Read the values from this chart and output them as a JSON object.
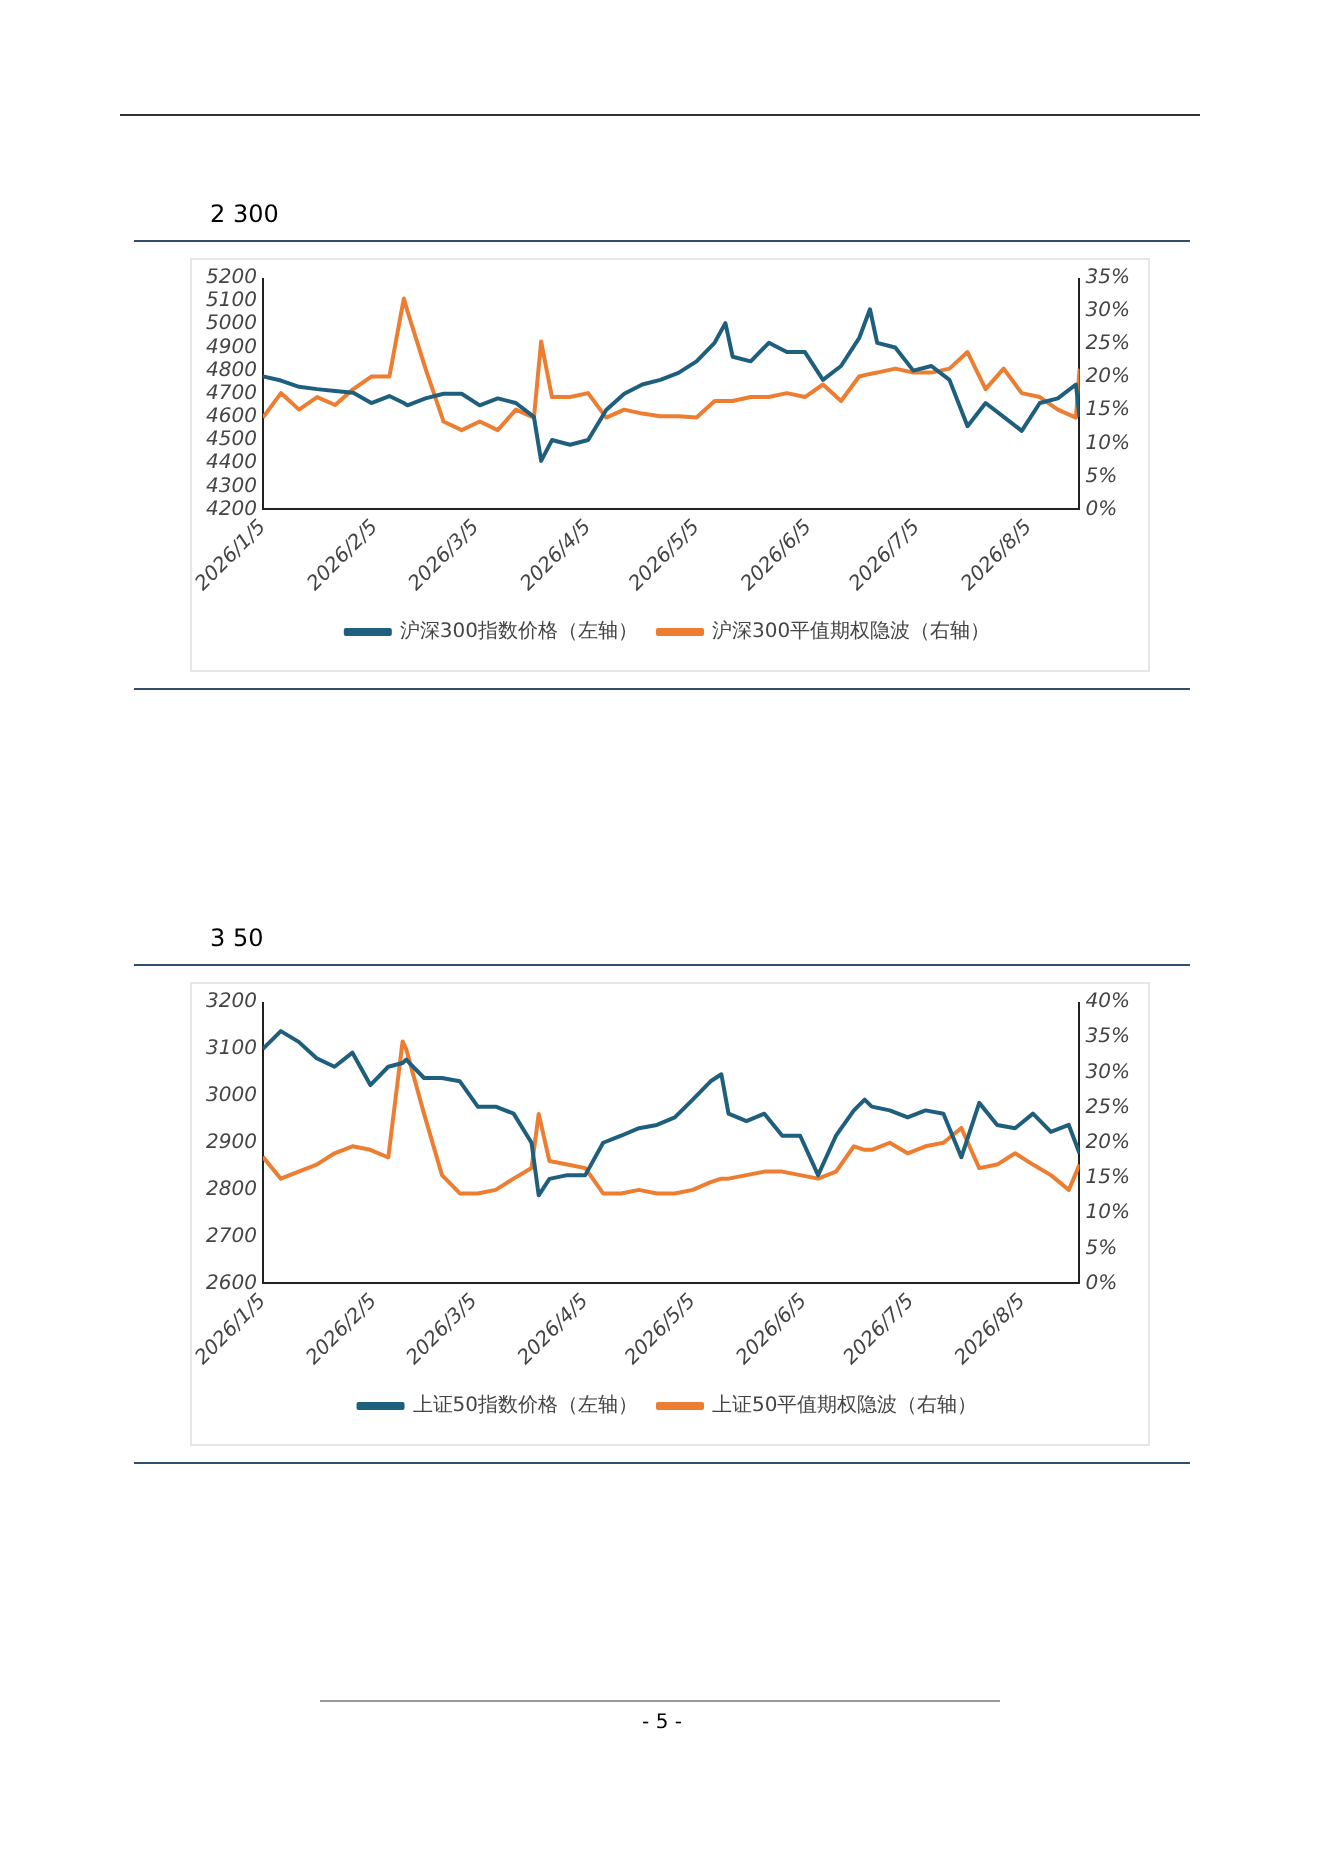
{
  "chart_data": [
    {
      "type": "line",
      "title": "2 300",
      "legend": "bottom",
      "grid": false,
      "marker": "none",
      "line_style": "solid",
      "x": [
        "2026-01-05",
        "2026-01-10",
        "2026-01-15",
        "2026-01-20",
        "2026-01-25",
        "2026-01-30",
        "2026-02-04",
        "2026-02-09",
        "2026-02-13",
        "2026-02-14",
        "2026-02-19",
        "2026-02-24",
        "2026-03-01",
        "2026-03-06",
        "2026-03-11",
        "2026-03-16",
        "2026-03-21",
        "2026-03-23",
        "2026-03-26",
        "2026-03-31",
        "2026-04-05",
        "2026-04-10",
        "2026-04-15",
        "2026-04-20",
        "2026-04-25",
        "2026-04-30",
        "2026-05-05",
        "2026-05-10",
        "2026-05-13",
        "2026-05-15",
        "2026-05-20",
        "2026-05-25",
        "2026-05-30",
        "2026-06-04",
        "2026-06-09",
        "2026-06-14",
        "2026-06-19",
        "2026-06-22",
        "2026-06-24",
        "2026-06-29",
        "2026-07-04",
        "2026-07-09",
        "2026-07-14",
        "2026-07-19",
        "2026-07-24",
        "2026-07-29",
        "2026-08-03",
        "2026-08-08",
        "2026-08-13",
        "2026-08-18",
        "2026-08-19"
      ],
      "xlim": [
        "2026-01-05",
        "2026-08-19"
      ],
      "xticks": [
        {
          "value": "2026-01-05",
          "label": "2026/1/5"
        },
        {
          "value": "2026-02-05",
          "label": "2026/2/5"
        },
        {
          "value": "2026-03-05",
          "label": "2026/3/5"
        },
        {
          "value": "2026-04-05",
          "label": "2026/4/5"
        },
        {
          "value": "2026-05-05",
          "label": "2026/5/5"
        },
        {
          "value": "2026-06-05",
          "label": "2026/6/5"
        },
        {
          "value": "2026-07-05",
          "label": "2026/7/5"
        },
        {
          "value": "2026-08-05",
          "label": "2026/8/5"
        }
      ],
      "ylim": [
        4200,
        5200
      ],
      "yticks": [
        4200,
        4300,
        4400,
        4500,
        4600,
        4700,
        4800,
        4900,
        5000,
        5100,
        5200
      ],
      "y2lim": [
        0,
        35
      ],
      "y2ticks": [
        {
          "value": 0,
          "label": "0%"
        },
        {
          "value": 5,
          "label": "5%"
        },
        {
          "value": 10,
          "label": "10%"
        },
        {
          "value": 15,
          "label": "15%"
        },
        {
          "value": 20,
          "label": "20%"
        },
        {
          "value": 25,
          "label": "25%"
        },
        {
          "value": 30,
          "label": "30%"
        },
        {
          "value": 35,
          "label": "35%"
        }
      ],
      "series": [
        {
          "name": "沪深300指数价格（左轴）",
          "color": "#1f5f7e",
          "values": [
            4775,
            4757,
            4730,
            4720,
            4712,
            4704,
            4660,
            4690,
            4660,
            4650,
            4680,
            4700,
            4700,
            4650,
            4680,
            4660,
            4600,
            4410,
            4500,
            4480,
            4500,
            4630,
            4700,
            4740,
            4760,
            4790,
            4840,
            4920,
            5005,
            4860,
            4840,
            4920,
            4880,
            4880,
            4760,
            4820,
            4940,
            5065,
            4920,
            4900,
            4800,
            4820,
            4760,
            4560,
            4660,
            4600,
            4540,
            4660,
            4680,
            4740,
            4600
          ]
        },
        {
          "name": "沪深300平值期权隐波（右轴）",
          "color": "#ed7d31",
          "axis": "y2",
          "values": [
            13.9,
            17.6,
            15.1,
            17.0,
            15.8,
            18.2,
            20.1,
            20.1,
            31.9,
            30.0,
            21.3,
            13.3,
            12.0,
            13.3,
            12.0,
            15.1,
            13.9,
            25.4,
            17.0,
            17.0,
            17.6,
            13.9,
            15.1,
            14.5,
            14.1,
            14.1,
            13.9,
            16.4,
            16.4,
            16.4,
            17.0,
            17.0,
            17.6,
            17.0,
            18.9,
            16.4,
            20.1,
            20.5,
            20.7,
            21.3,
            20.7,
            20.7,
            21.3,
            23.8,
            18.2,
            21.3,
            17.6,
            17.0,
            15.1,
            13.9,
            21.3
          ]
        }
      ]
    },
    {
      "type": "line",
      "title": "3 50",
      "legend": "bottom",
      "grid": false,
      "marker": "none",
      "line_style": "solid",
      "annotations": [
        "- 5 -"
      ],
      "x": [
        "2026-01-05",
        "2026-01-10",
        "2026-01-15",
        "2026-01-20",
        "2026-01-25",
        "2026-01-30",
        "2026-02-04",
        "2026-02-09",
        "2026-02-13",
        "2026-02-14",
        "2026-02-19",
        "2026-02-24",
        "2026-03-01",
        "2026-03-06",
        "2026-03-11",
        "2026-03-16",
        "2026-03-21",
        "2026-03-23",
        "2026-03-26",
        "2026-03-31",
        "2026-04-05",
        "2026-04-10",
        "2026-04-15",
        "2026-04-20",
        "2026-04-25",
        "2026-04-30",
        "2026-05-05",
        "2026-05-10",
        "2026-05-13",
        "2026-05-15",
        "2026-05-20",
        "2026-05-25",
        "2026-05-30",
        "2026-06-04",
        "2026-06-09",
        "2026-06-14",
        "2026-06-19",
        "2026-06-22",
        "2026-06-24",
        "2026-06-29",
        "2026-07-04",
        "2026-07-09",
        "2026-07-14",
        "2026-07-19",
        "2026-07-24",
        "2026-07-29",
        "2026-08-03",
        "2026-08-08",
        "2026-08-13",
        "2026-08-18",
        "2026-08-21"
      ],
      "xlim": [
        "2026-01-05",
        "2026-08-21"
      ],
      "xticks": [
        {
          "value": "2026-01-05",
          "label": "2026/1/5"
        },
        {
          "value": "2026-02-05",
          "label": "2026/2/5"
        },
        {
          "value": "2026-03-05",
          "label": "2026/3/5"
        },
        {
          "value": "2026-04-05",
          "label": "2026/4/5"
        },
        {
          "value": "2026-05-05",
          "label": "2026/5/5"
        },
        {
          "value": "2026-06-05",
          "label": "2026/6/5"
        },
        {
          "value": "2026-07-05",
          "label": "2026/7/5"
        },
        {
          "value": "2026-08-05",
          "label": "2026/8/5"
        }
      ],
      "ylim": [
        2600,
        3200
      ],
      "yticks": [
        2600,
        2700,
        2800,
        2900,
        3000,
        3100,
        3200
      ],
      "y2lim": [
        0,
        40
      ],
      "y2ticks": [
        {
          "value": 0,
          "label": "0%"
        },
        {
          "value": 5,
          "label": "5%"
        },
        {
          "value": 10,
          "label": "10%"
        },
        {
          "value": 15,
          "label": "15%"
        },
        {
          "value": 20,
          "label": "20%"
        },
        {
          "value": 25,
          "label": "25%"
        },
        {
          "value": 30,
          "label": "30%"
        },
        {
          "value": 35,
          "label": "35%"
        },
        {
          "value": 40,
          "label": "40%"
        }
      ],
      "series": [
        {
          "name": "上证50指数价格（左轴）",
          "color": "#1f5f7e",
          "values": [
            3100,
            3138,
            3115,
            3080,
            3062,
            3092,
            3023,
            3062,
            3070,
            3077,
            3038,
            3038,
            3031,
            2977,
            2977,
            2962,
            2900,
            2788,
            2823,
            2831,
            2831,
            2900,
            2915,
            2931,
            2938,
            2954,
            2992,
            3031,
            3046,
            2962,
            2946,
            2962,
            2915,
            2915,
            2831,
            2915,
            2969,
            2992,
            2977,
            2969,
            2954,
            2969,
            2962,
            2869,
            2985,
            2938,
            2931,
            2962,
            2923,
            2938,
            2877
          ]
        },
        {
          "name": "上证50平值期权隐波（右轴）",
          "color": "#ed7d31",
          "axis": "y2",
          "values": [
            18.0,
            14.9,
            15.9,
            16.9,
            18.5,
            19.5,
            19.0,
            17.9,
            34.4,
            33.3,
            24.1,
            15.4,
            12.8,
            12.8,
            13.3,
            14.9,
            16.4,
            24.1,
            17.4,
            16.9,
            16.4,
            12.8,
            12.8,
            13.3,
            12.8,
            12.8,
            13.3,
            14.4,
            14.9,
            14.9,
            15.4,
            15.9,
            15.9,
            15.4,
            14.9,
            15.9,
            19.5,
            19.0,
            19.0,
            20.0,
            18.5,
            19.5,
            20.0,
            22.1,
            16.4,
            16.9,
            18.5,
            16.9,
            15.4,
            13.3,
            16.9
          ]
        }
      ]
    }
  ]
}
